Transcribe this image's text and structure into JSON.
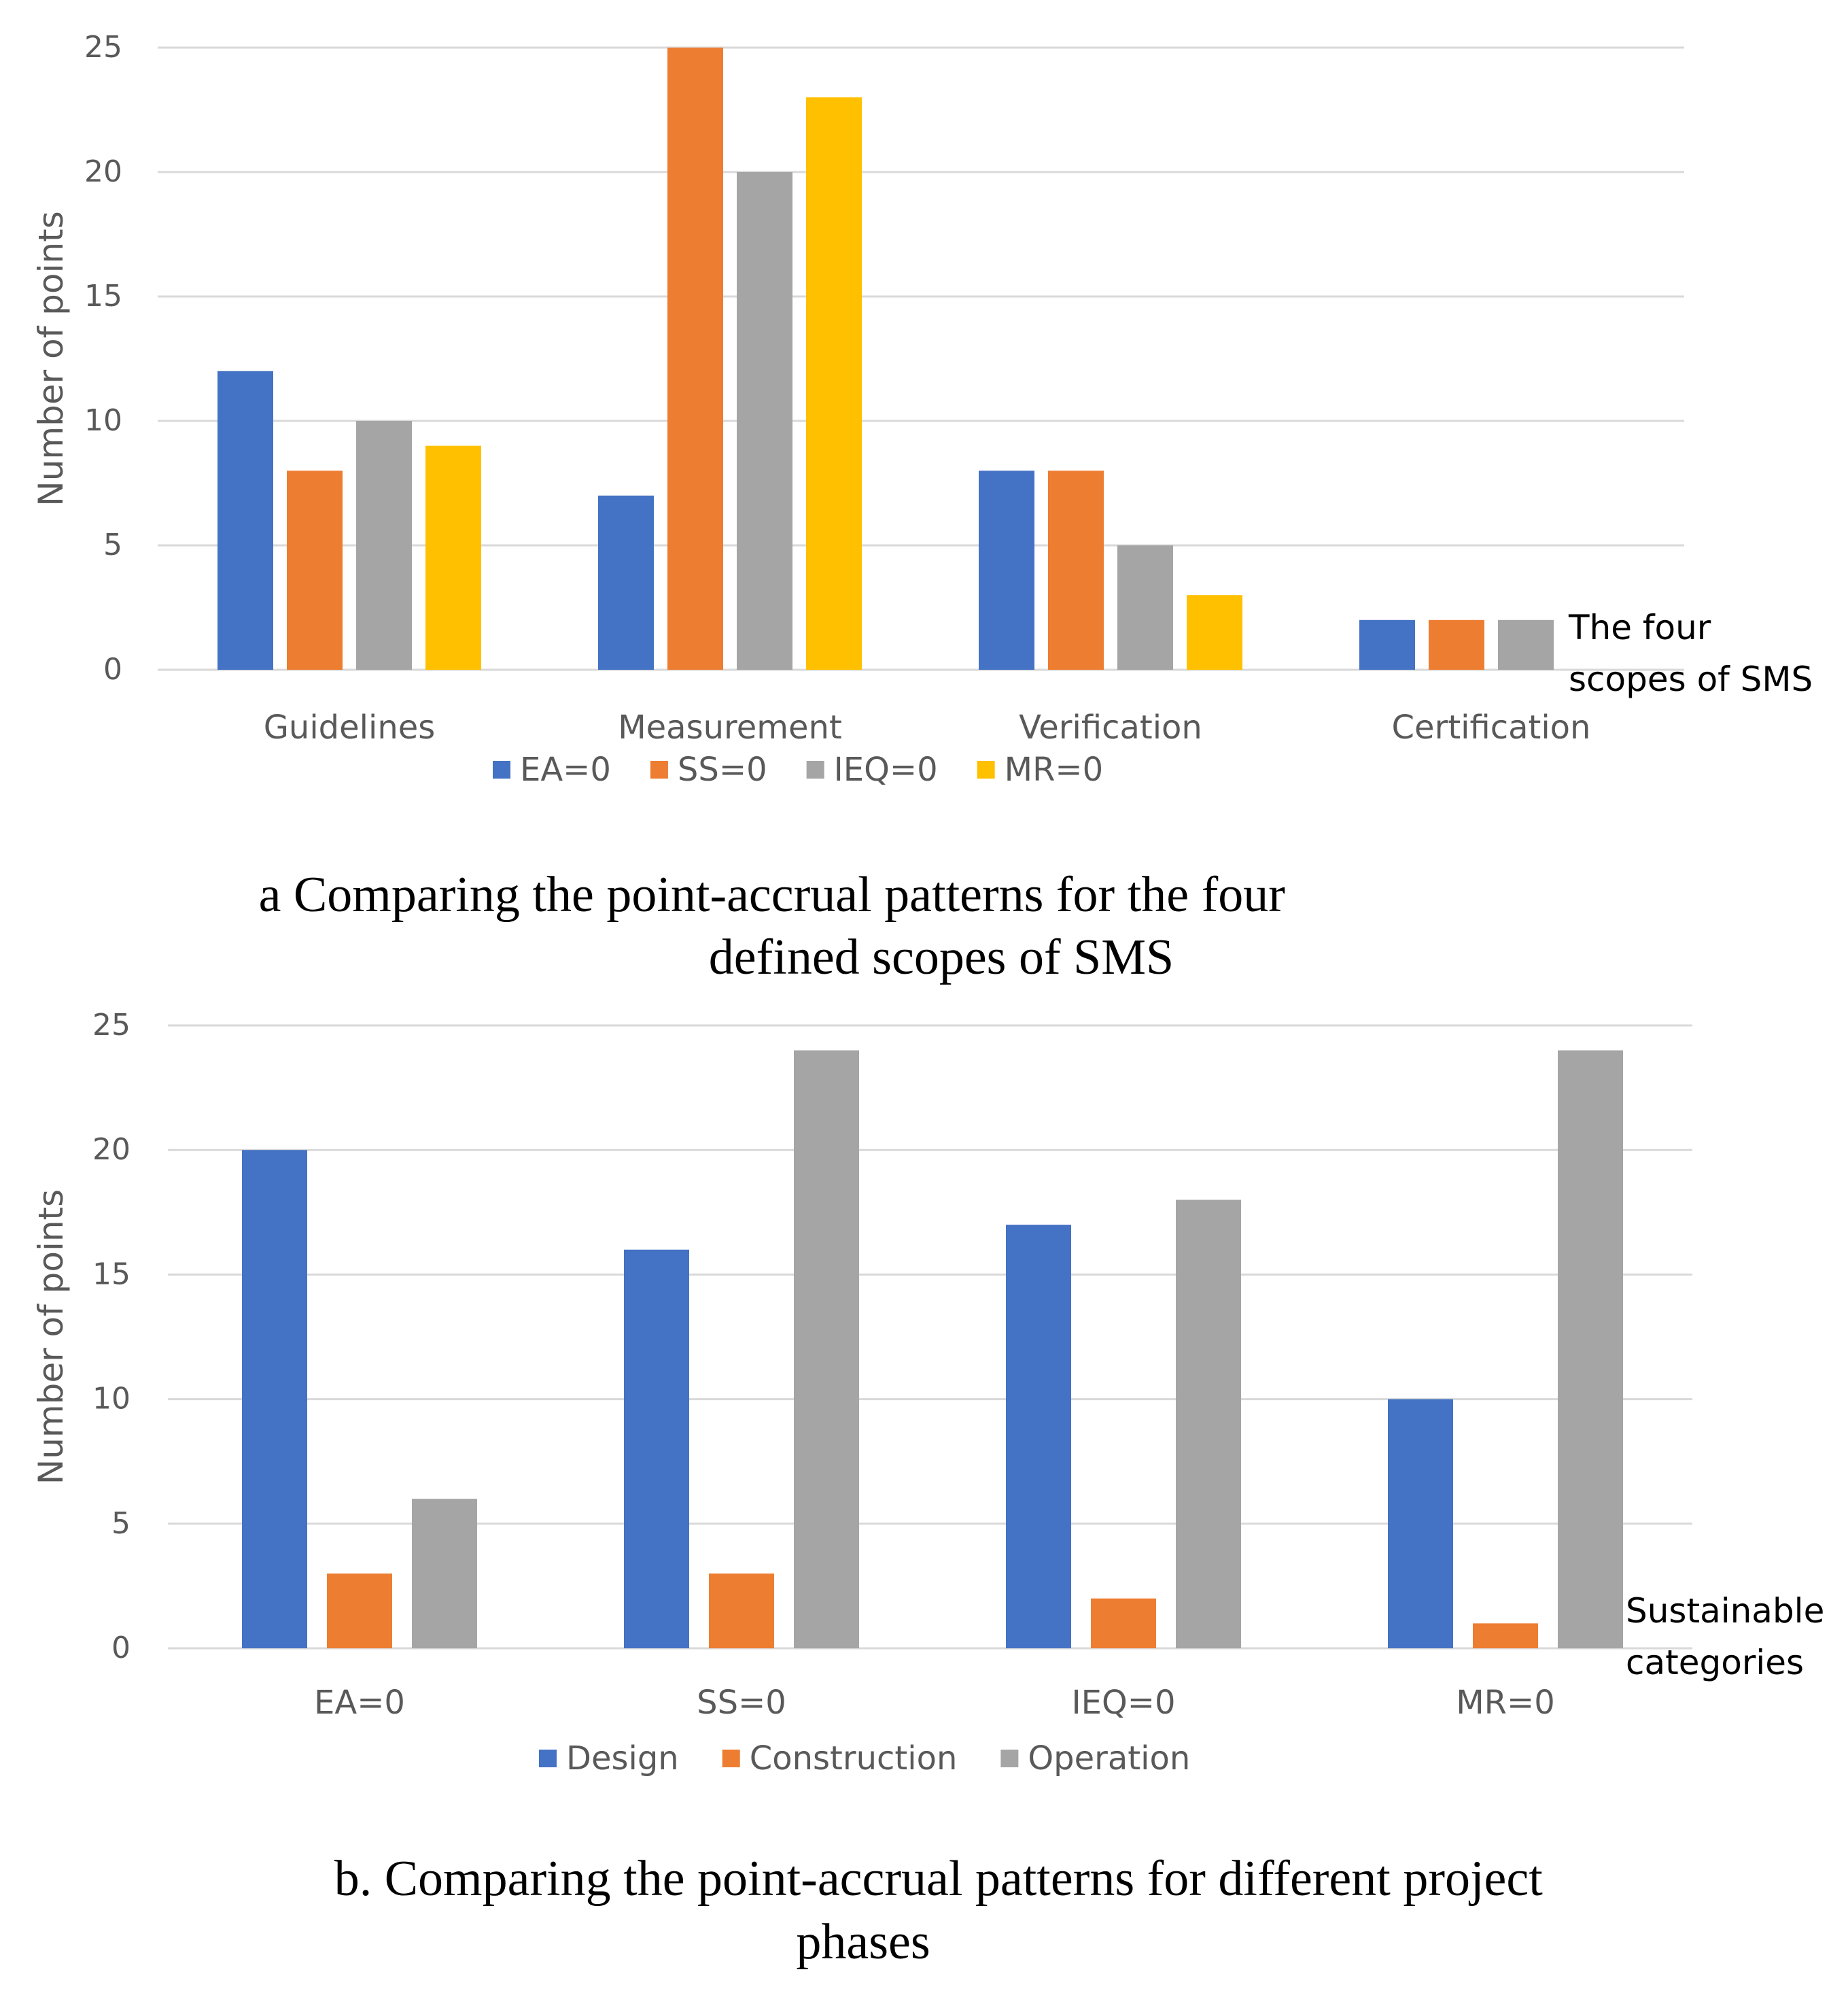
{
  "chart_data": [
    {
      "type": "bar",
      "ylabel": "Number of points",
      "xlabel": "",
      "ylim": [
        0,
        25
      ],
      "yticks": [
        0,
        5,
        10,
        15,
        20,
        25
      ],
      "grid": true,
      "categories": [
        "Guidelines",
        "Measurement",
        "Verification",
        "Certification"
      ],
      "series": [
        {
          "name": "EA=0",
          "color": "#4472C4",
          "values": [
            12,
            7,
            8,
            2
          ]
        },
        {
          "name": "SS=0",
          "color": "#ED7D31",
          "values": [
            8,
            25,
            8,
            2
          ]
        },
        {
          "name": "IEQ=0",
          "color": "#A5A5A5",
          "values": [
            10,
            20,
            5,
            2
          ]
        },
        {
          "name": "MR=0",
          "color": "#FFC000",
          "values": [
            9,
            23,
            3,
            0
          ]
        }
      ],
      "legend_position": "bottom",
      "side_note": [
        "The four",
        "scopes of SMS"
      ],
      "caption": [
        "a Comparing the point-accrual patterns for the four",
        "defined scopes of SMS"
      ]
    },
    {
      "type": "bar",
      "ylabel": "Number of points",
      "xlabel": "",
      "ylim": [
        0,
        25
      ],
      "yticks": [
        0,
        5,
        10,
        15,
        20,
        25
      ],
      "grid": true,
      "categories": [
        "EA=0",
        "SS=0",
        "IEQ=0",
        "MR=0"
      ],
      "series": [
        {
          "name": "Design",
          "color": "#4472C4",
          "values": [
            20,
            16,
            17,
            10
          ]
        },
        {
          "name": "Construction",
          "color": "#ED7D31",
          "values": [
            3,
            3,
            2,
            1
          ]
        },
        {
          "name": "Operation",
          "color": "#A5A5A5",
          "values": [
            6,
            24,
            18,
            24
          ]
        }
      ],
      "legend_position": "bottom",
      "side_note": [
        "Sustainable",
        "categories"
      ],
      "caption": [
        "b. Comparing the point-accrual patterns for different project",
        "phases"
      ]
    }
  ]
}
